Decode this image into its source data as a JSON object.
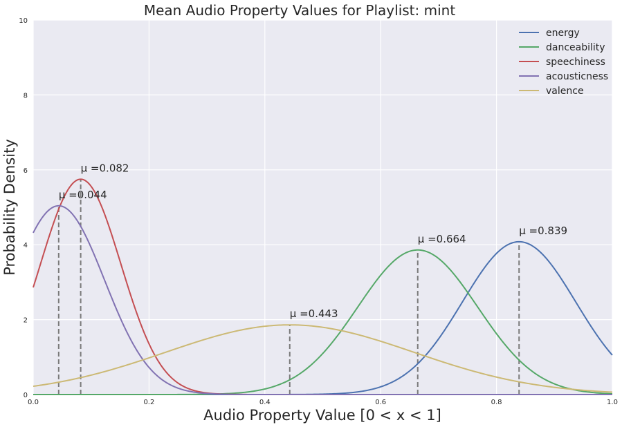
{
  "chart_data": {
    "type": "line",
    "title": "Mean Audio Property Values for Playlist: mint",
    "xlabel": "Audio Property Value [0 < x < 1]",
    "ylabel": "Probability Density",
    "xlim": [
      0,
      1.0
    ],
    "ylim": [
      0,
      10
    ],
    "xticks": [
      "0.0",
      "0.2",
      "0.4",
      "0.6",
      "0.8",
      "1.0"
    ],
    "yticks": [
      "0",
      "2",
      "4",
      "6",
      "8",
      "10"
    ],
    "grid": true,
    "legend_position": "top-right",
    "series": [
      {
        "name": "energy",
        "color": "#4C72B0",
        "mean": 0.839,
        "mean_label": "μ =0.839",
        "peak": 4.08
      },
      {
        "name": "danceability",
        "color": "#55A868",
        "mean": 0.664,
        "mean_label": "μ =0.664",
        "peak": 3.86
      },
      {
        "name": "speechiness",
        "color": "#C44E52",
        "mean": 0.082,
        "mean_label": "μ =0.082",
        "peak": 5.75
      },
      {
        "name": "acousticness",
        "color": "#8172B2",
        "mean": 0.044,
        "mean_label": "μ =0.044",
        "peak": 5.04
      },
      {
        "name": "valence",
        "color": "#CCB974",
        "mean": 0.443,
        "mean_label": "μ =0.443",
        "peak": 1.86
      }
    ]
  }
}
